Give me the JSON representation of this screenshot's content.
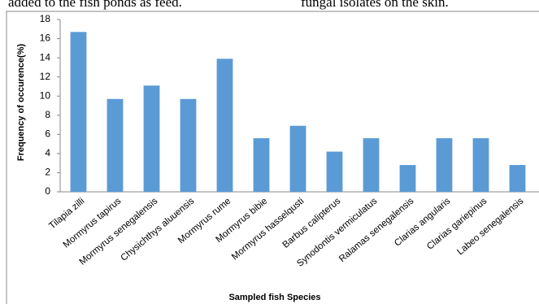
{
  "page_text": [
    "added to the fish ponds as feed.",
    "fungal isolates on the skin."
  ],
  "chart_data": {
    "type": "bar",
    "ylabel": "Frequency of occurence(%)",
    "xlabel": "Sampled fish Species",
    "categories": [
      "Tilapia zilli",
      "Mormyrus tapirus",
      "Mormyrus senegalensis",
      "Chysichthys aluuensis",
      "Mormyrus rume",
      "Mormyrus bibie",
      "Mormyrus hasselqusti",
      "Barbus calipterus",
      "Synodontis vermiculatus",
      "Ralamas senegalensis",
      "Clarias angularis",
      "Clarias gariepinus",
      "Labeo senegalensis"
    ],
    "values": [
      16.7,
      9.7,
      11.1,
      9.7,
      13.9,
      5.6,
      6.9,
      4.2,
      5.6,
      2.8,
      5.6,
      5.6,
      2.8
    ],
    "color": "#5b9bd5",
    "ylim": [
      0,
      18
    ],
    "yticks": [
      0,
      2,
      4,
      6,
      8,
      10,
      12,
      14,
      16,
      18
    ]
  }
}
